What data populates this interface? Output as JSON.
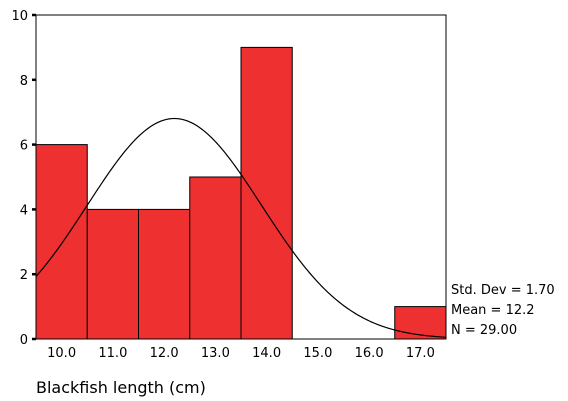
{
  "chart_data": {
    "type": "bar",
    "title": "",
    "xlabel": "Blackfish length (cm)",
    "ylabel": "",
    "categories": [
      "10.0",
      "11.0",
      "12.0",
      "13.0",
      "14.0",
      "15.0",
      "16.0",
      "17.0"
    ],
    "values": [
      6,
      4,
      4,
      5,
      9,
      0,
      0,
      1
    ],
    "ylim": [
      0,
      10
    ],
    "y_ticks": [
      "0",
      "2",
      "4",
      "6",
      "8",
      "10"
    ],
    "xlim": [
      9.5,
      17.5
    ],
    "grid": false,
    "normal_curve": {
      "mean": 12.2,
      "std_dev": 1.7,
      "n": 29.0,
      "bin_width": 1.0
    },
    "stats": {
      "std_dev_label": "Std. Dev = 1.70",
      "mean_label": "Mean = 12.2",
      "n_label": "N = 29.00"
    },
    "colors": {
      "bar_fill": "#ef3030",
      "bar_stroke": "#000000",
      "curve": "#000000",
      "axis": "#000000"
    }
  }
}
